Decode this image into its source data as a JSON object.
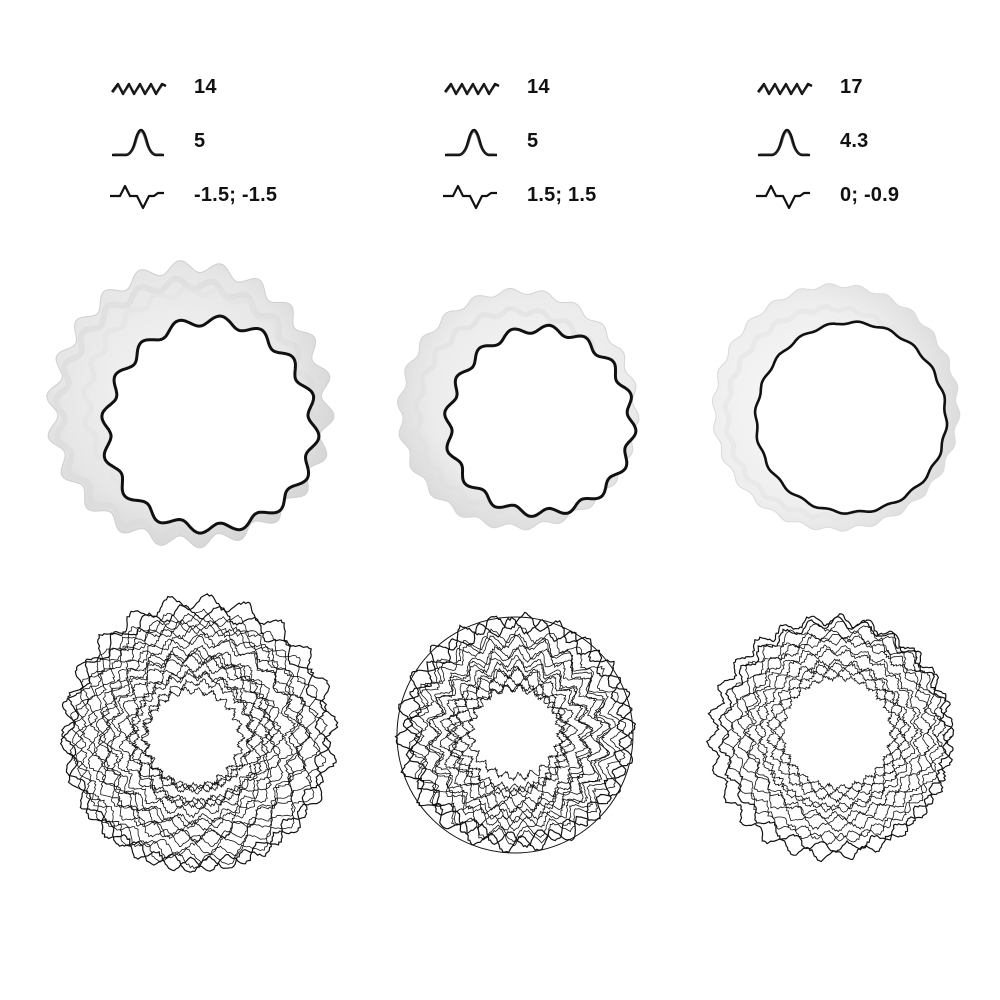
{
  "legend_icons": [
    "wave-frequency-icon",
    "peak-amplitude-icon",
    "offset-wavelet-icon"
  ],
  "variants": [
    {
      "frequency": "14",
      "amplitude": "5",
      "offset": "-1.5; -1.5"
    },
    {
      "frequency": "14",
      "amplitude": "5",
      "offset": "1.5; 1.5"
    },
    {
      "frequency": "17",
      "amplitude": "4.3",
      "offset": "0; -0.9"
    }
  ]
}
